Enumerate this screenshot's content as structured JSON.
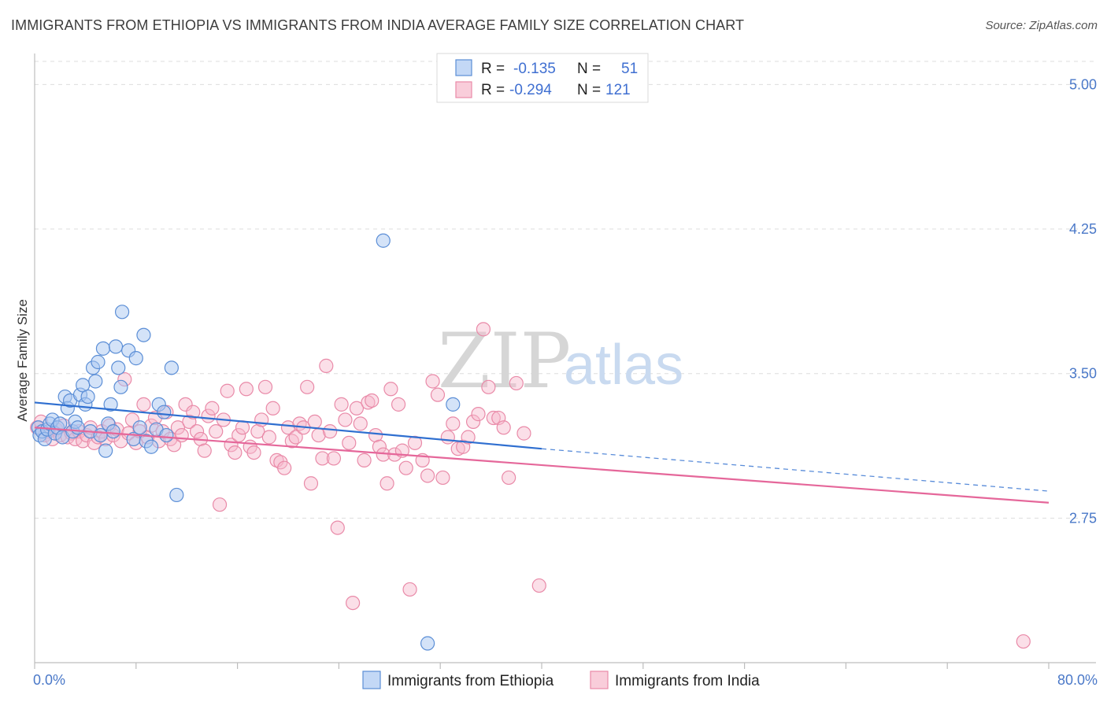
{
  "title": "IMMIGRANTS FROM ETHIOPIA VS IMMIGRANTS FROM INDIA AVERAGE FAMILY SIZE CORRELATION CHART",
  "source": "Source: ZipAtlas.com",
  "watermark": {
    "zip": "ZIP",
    "atlas": "atlas"
  },
  "colors": {
    "ethiopia_fill": "#a9c8f2",
    "ethiopia_stroke": "#5b8ed6",
    "ethiopia_line": "#2f6fd0",
    "india_fill": "#f7b8cb",
    "india_stroke": "#e98aa8",
    "india_line": "#e5679a",
    "grid": "#dddddd",
    "axis_label": "#4a78c8"
  },
  "legend": {
    "r_label": "R =",
    "n_label": "N =",
    "ethiopia": {
      "r": "-0.135",
      "n": "51"
    },
    "india": {
      "r": "-0.294",
      "n": "121"
    }
  },
  "chart_data": {
    "type": "scatter",
    "title": "IMMIGRANTS FROM ETHIOPIA VS IMMIGRANTS FROM INDIA AVERAGE FAMILY SIZE CORRELATION CHART",
    "xlabel": "",
    "ylabel": "Average Family Size",
    "xlim": [
      0,
      80
    ],
    "ylim": [
      2.0,
      5.12
    ],
    "y_ticks": [
      2.75,
      3.5,
      4.25,
      5.0
    ],
    "y_tick_labels": [
      "2.75",
      "3.50",
      "4.25",
      "5.00"
    ],
    "x_tick_labels": [
      "0.0%",
      "80.0%"
    ],
    "legend_position": "top-center",
    "series": [
      {
        "name": "Immigrants from Ethiopia",
        "trend": {
          "x0": 0,
          "y0": 3.35,
          "x1": 40,
          "y1": 3.11,
          "dash_to_x": 80,
          "dash_to_y": 2.89
        },
        "points": [
          [
            0.3,
            3.22
          ],
          [
            0.4,
            3.18
          ],
          [
            0.6,
            3.2
          ],
          [
            0.8,
            3.16
          ],
          [
            1.0,
            3.21
          ],
          [
            1.2,
            3.24
          ],
          [
            1.4,
            3.26
          ],
          [
            1.6,
            3.19
          ],
          [
            1.8,
            3.22
          ],
          [
            2.0,
            3.24
          ],
          [
            2.2,
            3.17
          ],
          [
            2.4,
            3.38
          ],
          [
            2.6,
            3.32
          ],
          [
            2.8,
            3.36
          ],
          [
            3.0,
            3.2
          ],
          [
            3.2,
            3.25
          ],
          [
            3.4,
            3.22
          ],
          [
            3.6,
            3.39
          ],
          [
            3.8,
            3.44
          ],
          [
            4.0,
            3.34
          ],
          [
            4.2,
            3.38
          ],
          [
            4.4,
            3.2
          ],
          [
            4.6,
            3.53
          ],
          [
            4.8,
            3.46
          ],
          [
            5.0,
            3.56
          ],
          [
            5.2,
            3.18
          ],
          [
            5.4,
            3.63
          ],
          [
            5.6,
            3.1
          ],
          [
            5.8,
            3.24
          ],
          [
            6.0,
            3.34
          ],
          [
            6.2,
            3.2
          ],
          [
            6.4,
            3.64
          ],
          [
            6.6,
            3.53
          ],
          [
            6.8,
            3.43
          ],
          [
            6.9,
            3.82
          ],
          [
            7.4,
            3.62
          ],
          [
            7.8,
            3.16
          ],
          [
            8.0,
            3.58
          ],
          [
            8.3,
            3.22
          ],
          [
            8.6,
            3.7
          ],
          [
            8.8,
            3.15
          ],
          [
            9.2,
            3.12
          ],
          [
            9.6,
            3.21
          ],
          [
            9.8,
            3.34
          ],
          [
            10.2,
            3.3
          ],
          [
            10.4,
            3.18
          ],
          [
            10.8,
            3.53
          ],
          [
            11.2,
            2.87
          ],
          [
            27.5,
            4.19
          ],
          [
            31.0,
            2.1
          ],
          [
            33.0,
            3.34
          ]
        ]
      },
      {
        "name": "Immigrants from India",
        "trend": {
          "x0": 0,
          "y0": 3.22,
          "x1": 80,
          "y1": 2.83
        },
        "points": [
          [
            0.2,
            3.22
          ],
          [
            0.5,
            3.25
          ],
          [
            0.8,
            3.18
          ],
          [
            1.1,
            3.2
          ],
          [
            1.4,
            3.16
          ],
          [
            1.7,
            3.21
          ],
          [
            2.0,
            3.18
          ],
          [
            2.3,
            3.23
          ],
          [
            2.6,
            3.17
          ],
          [
            2.9,
            3.19
          ],
          [
            3.2,
            3.16
          ],
          [
            3.5,
            3.2
          ],
          [
            3.8,
            3.15
          ],
          [
            4.1,
            3.18
          ],
          [
            4.4,
            3.22
          ],
          [
            4.7,
            3.14
          ],
          [
            5.0,
            3.17
          ],
          [
            5.3,
            3.2
          ],
          [
            5.6,
            3.16
          ],
          [
            5.9,
            3.23
          ],
          [
            6.2,
            3.18
          ],
          [
            6.5,
            3.21
          ],
          [
            6.8,
            3.15
          ],
          [
            7.1,
            3.47
          ],
          [
            7.4,
            3.19
          ],
          [
            7.7,
            3.26
          ],
          [
            8.0,
            3.14
          ],
          [
            8.3,
            3.2
          ],
          [
            8.6,
            3.34
          ],
          [
            8.9,
            3.17
          ],
          [
            9.2,
            3.23
          ],
          [
            9.5,
            3.27
          ],
          [
            9.8,
            3.15
          ],
          [
            10.1,
            3.2
          ],
          [
            10.4,
            3.3
          ],
          [
            10.7,
            3.16
          ],
          [
            11.0,
            3.13
          ],
          [
            11.3,
            3.22
          ],
          [
            11.6,
            3.18
          ],
          [
            11.9,
            3.34
          ],
          [
            12.2,
            3.25
          ],
          [
            12.5,
            3.3
          ],
          [
            12.8,
            3.2
          ],
          [
            13.1,
            3.16
          ],
          [
            13.4,
            3.1
          ],
          [
            13.7,
            3.28
          ],
          [
            14.0,
            3.32
          ],
          [
            14.3,
            3.2
          ],
          [
            14.6,
            2.82
          ],
          [
            14.9,
            3.26
          ],
          [
            15.2,
            3.41
          ],
          [
            15.5,
            3.13
          ],
          [
            15.8,
            3.09
          ],
          [
            16.1,
            3.18
          ],
          [
            16.4,
            3.22
          ],
          [
            16.7,
            3.42
          ],
          [
            17.0,
            3.12
          ],
          [
            17.3,
            3.09
          ],
          [
            17.6,
            3.2
          ],
          [
            17.9,
            3.26
          ],
          [
            18.2,
            3.43
          ],
          [
            18.5,
            3.17
          ],
          [
            18.8,
            3.32
          ],
          [
            19.1,
            3.05
          ],
          [
            19.4,
            3.04
          ],
          [
            19.7,
            3.01
          ],
          [
            20.0,
            3.22
          ],
          [
            20.3,
            3.15
          ],
          [
            20.6,
            3.17
          ],
          [
            20.9,
            3.24
          ],
          [
            21.2,
            3.22
          ],
          [
            21.5,
            3.43
          ],
          [
            21.8,
            2.93
          ],
          [
            22.1,
            3.25
          ],
          [
            22.4,
            3.18
          ],
          [
            22.7,
            3.06
          ],
          [
            23.0,
            3.54
          ],
          [
            23.3,
            3.2
          ],
          [
            23.6,
            3.06
          ],
          [
            23.9,
            2.7
          ],
          [
            24.2,
            3.34
          ],
          [
            24.5,
            3.26
          ],
          [
            24.8,
            3.14
          ],
          [
            25.1,
            2.31
          ],
          [
            25.4,
            3.32
          ],
          [
            25.7,
            3.24
          ],
          [
            26.0,
            3.05
          ],
          [
            26.3,
            3.35
          ],
          [
            26.6,
            3.36
          ],
          [
            26.9,
            3.18
          ],
          [
            27.2,
            3.12
          ],
          [
            27.5,
            3.08
          ],
          [
            27.8,
            2.93
          ],
          [
            28.1,
            3.42
          ],
          [
            28.4,
            3.08
          ],
          [
            28.7,
            3.34
          ],
          [
            29.0,
            3.1
          ],
          [
            29.3,
            3.01
          ],
          [
            29.6,
            2.38
          ],
          [
            30.0,
            3.14
          ],
          [
            30.6,
            3.05
          ],
          [
            31.0,
            2.97
          ],
          [
            31.4,
            3.46
          ],
          [
            31.8,
            3.39
          ],
          [
            32.2,
            2.96
          ],
          [
            32.6,
            3.17
          ],
          [
            33.0,
            3.24
          ],
          [
            33.4,
            3.11
          ],
          [
            33.8,
            3.12
          ],
          [
            34.2,
            3.17
          ],
          [
            34.6,
            3.25
          ],
          [
            35.0,
            3.29
          ],
          [
            35.4,
            3.73
          ],
          [
            35.8,
            3.43
          ],
          [
            36.2,
            3.27
          ],
          [
            36.6,
            3.27
          ],
          [
            37.0,
            3.22
          ],
          [
            37.4,
            2.96
          ],
          [
            38.0,
            3.45
          ],
          [
            38.6,
            3.19
          ],
          [
            39.8,
            2.4
          ],
          [
            78.0,
            2.11
          ]
        ]
      }
    ]
  },
  "bottom_legend": {
    "ethiopia": "Immigrants from Ethiopia",
    "india": "Immigrants from India"
  }
}
